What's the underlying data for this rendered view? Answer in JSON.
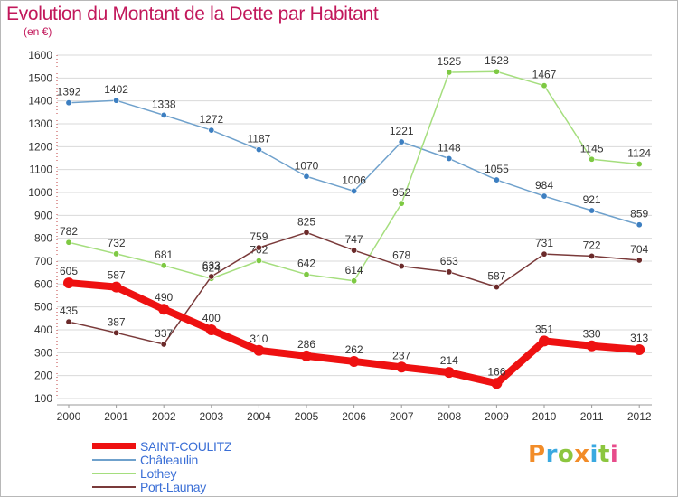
{
  "title": "Evolution du Montant de la Dette par Habitant",
  "subtitle": "(en €)",
  "brand": "Proxiti",
  "brand_colors": [
    "#f28c28",
    "#3aa9e0",
    "#8cc63f",
    "#f28c28",
    "#3aa9e0",
    "#8cc63f",
    "#e74c8b"
  ],
  "colors": {
    "grid": "#d9d9d9",
    "axis_text": "#333333",
    "label_text": "#333333"
  },
  "chart_data": {
    "type": "line",
    "title": "Evolution du Montant de la Dette par Habitant",
    "subtitle": "(en €)",
    "xlabel": "",
    "ylabel": "",
    "x": [
      "2000",
      "2001",
      "2002",
      "2003",
      "2004",
      "2005",
      "2006",
      "2007",
      "2008",
      "2009",
      "2010",
      "2011",
      "2012"
    ],
    "ylim": [
      100,
      1600
    ],
    "yticks": [
      100,
      200,
      300,
      400,
      500,
      600,
      700,
      800,
      900,
      1000,
      1100,
      1200,
      1300,
      1400,
      1500,
      1600
    ],
    "grid": "horizontal",
    "legend_position": "bottom-left",
    "series": [
      {
        "name": "SAINT-COULITZ",
        "color": "#ee1111",
        "point_color": "#ee1111",
        "emphasis": true,
        "values": [
          605,
          587,
          490,
          400,
          310,
          286,
          262,
          237,
          214,
          166,
          351,
          330,
          313
        ]
      },
      {
        "name": "Châteaulin",
        "color": "#6fa1cc",
        "point_color": "#3d7fc1",
        "emphasis": false,
        "values": [
          1392,
          1402,
          1338,
          1272,
          1187,
          1070,
          1006,
          1221,
          1148,
          1055,
          984,
          921,
          859
        ]
      },
      {
        "name": "Lothey",
        "color": "#a5de7e",
        "point_color": "#7ec943",
        "emphasis": false,
        "values": [
          782,
          732,
          681,
          624,
          702,
          642,
          614,
          952,
          1525,
          1528,
          1467,
          1145,
          1124
        ]
      },
      {
        "name": "Port-Launay",
        "color": "#7a3a3a",
        "point_color": "#6b2a2a",
        "emphasis": false,
        "values": [
          435,
          387,
          337,
          633,
          759,
          825,
          747,
          678,
          653,
          587,
          731,
          722,
          704
        ]
      }
    ]
  }
}
